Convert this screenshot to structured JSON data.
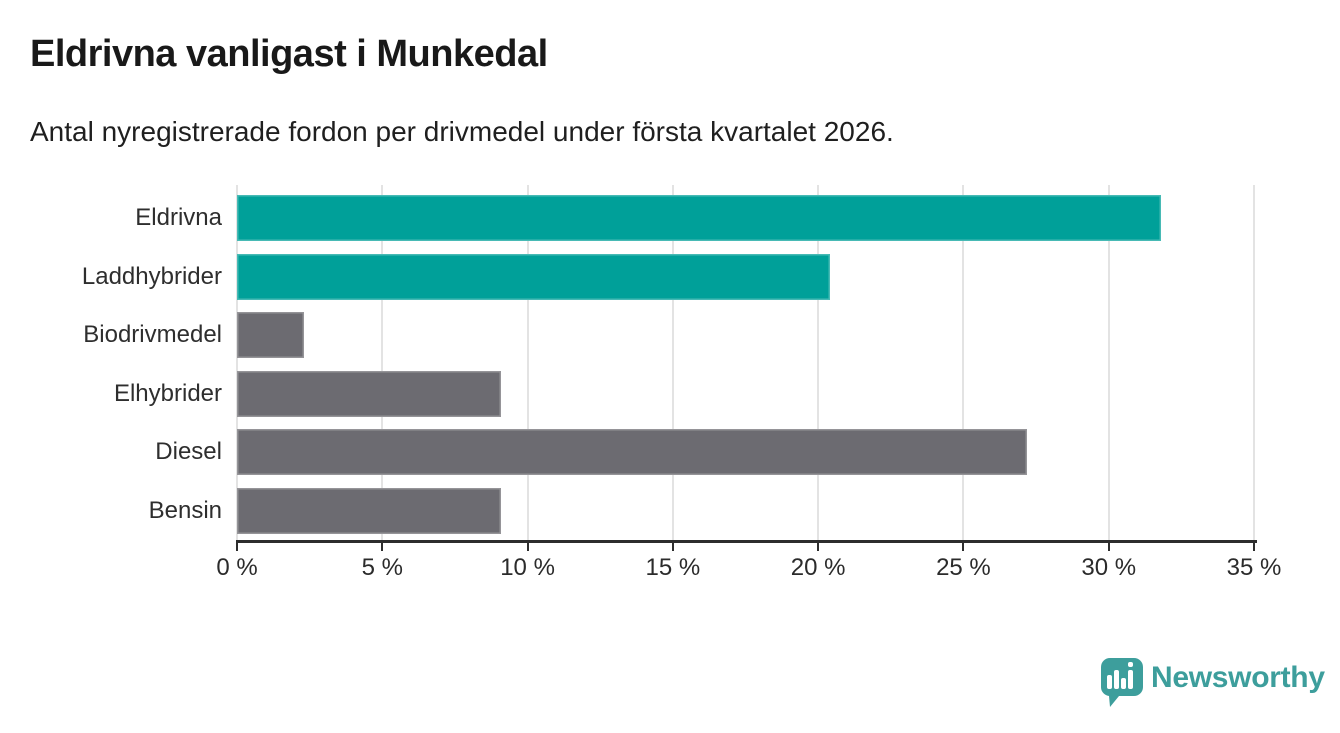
{
  "header": {
    "title": "Eldrivna vanligast i Munkedal",
    "subtitle": "Antal nyregistrerade fordon per drivmedel under första kvartalet 2026."
  },
  "chart_data": {
    "type": "bar",
    "orientation": "horizontal",
    "title": "Eldrivna vanligast i Munkedal",
    "subtitle": "Antal nyregistrerade fordon per drivmedel under första kvartalet 2026.",
    "categories": [
      "Eldrivna",
      "Laddhybrider",
      "Biodrivmedel",
      "Elhybrider",
      "Diesel",
      "Bensin"
    ],
    "values": [
      31.8,
      20.4,
      2.3,
      9.1,
      27.2,
      9.1
    ],
    "unit": "%",
    "bar_colors": [
      "#00a099",
      "#00a099",
      "#6c6b71",
      "#6c6b71",
      "#6c6b71",
      "#6c6b71"
    ],
    "highlight_color": "#00a099",
    "default_color": "#6c6b71",
    "xlim": [
      0,
      35
    ],
    "x_ticks": [
      0,
      5,
      10,
      15,
      20,
      25,
      30,
      35
    ],
    "x_tick_labels": [
      "0 %",
      "5 %",
      "10 %",
      "15 %",
      "20 %",
      "25 %",
      "30 %",
      "35 %"
    ],
    "grid": "vertical-on",
    "gridline_color": "#e3e3e3",
    "axis_color": "#2d2d2d",
    "legend": "none"
  },
  "branding": {
    "logo_icon": "newsworthy-speech-bubble-bar-chart-icon",
    "logo_text": "Newsworthy",
    "brand_color": "#3d9e9c"
  }
}
